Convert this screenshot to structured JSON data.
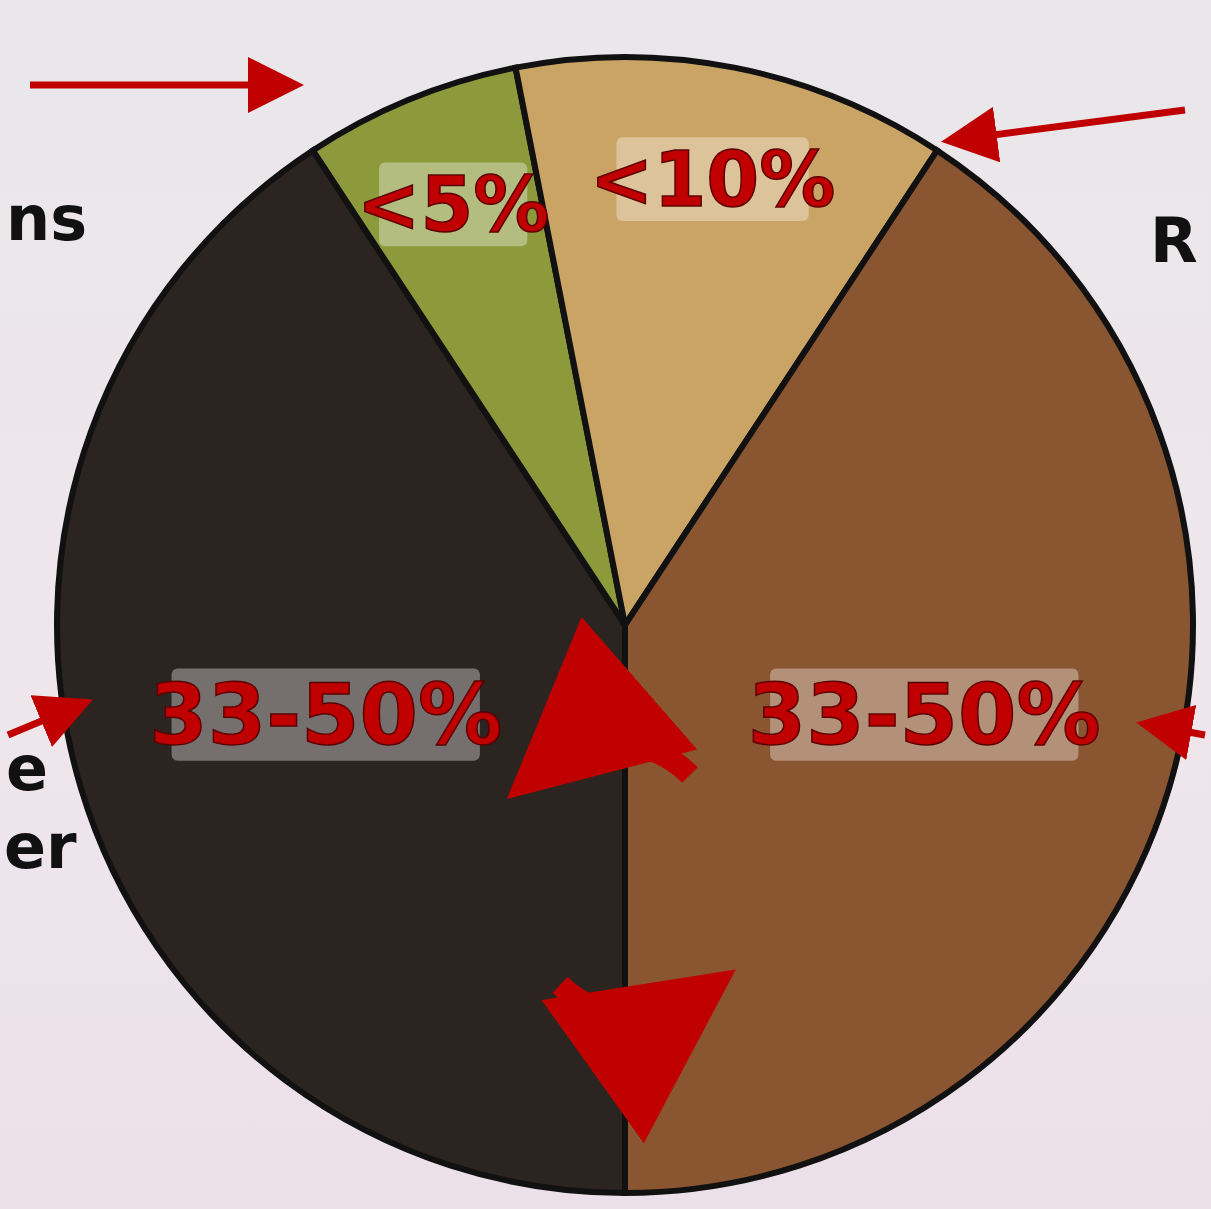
{
  "chart_data": {
    "type": "pie",
    "values": [
      33,
      5,
      10,
      33
    ],
    "value_labels": [
      "33-50%",
      "<5%",
      "<10%",
      "33-50%"
    ],
    "colors": [
      "#2b2420",
      "#8c9a3c",
      "#c9a465",
      "#8a5632"
    ],
    "data_labels": true,
    "annotations": [
      "ns",
      "R",
      "e",
      "er"
    ]
  }
}
